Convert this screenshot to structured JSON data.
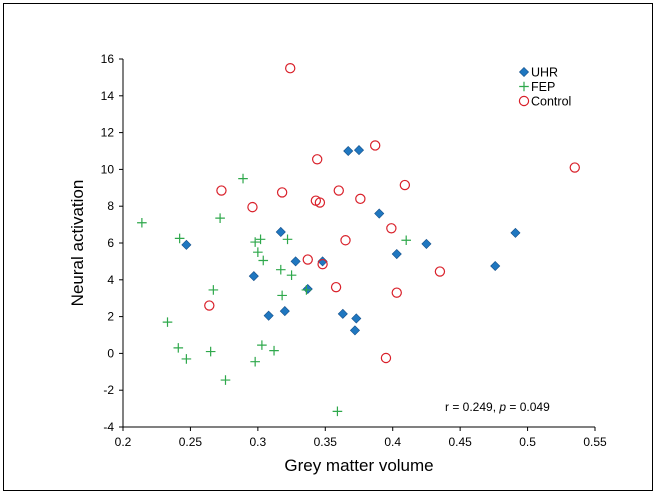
{
  "chart_data": {
    "type": "scatter",
    "xlabel": "Grey matter volume",
    "ylabel": "Neural activation",
    "xlim": [
      0.2,
      0.55
    ],
    "ylim": [
      -4,
      16
    ],
    "xticks": [
      "0.2",
      "0.25",
      "0.3",
      "0.35",
      "0.4",
      "0.45",
      "0.5",
      "0.55"
    ],
    "yticks": [
      "-4",
      "-2",
      "0",
      "2",
      "4",
      "6",
      "8",
      "10",
      "12",
      "14",
      "16"
    ],
    "xtick_values": [
      0.2,
      0.25,
      0.3,
      0.35,
      0.4,
      0.45,
      0.5,
      0.55
    ],
    "ytick_values": [
      -4,
      -2,
      0,
      2,
      4,
      6,
      8,
      10,
      12,
      14,
      16
    ],
    "grid": false,
    "legend_position": "top-right",
    "annotation": {
      "r_text": "r = 0.249, ",
      "p_symbol": "p",
      "p_text": " = 0.049"
    },
    "series": [
      {
        "name": "UHR",
        "marker": "diamond",
        "color": "#1f77c0",
        "points": [
          [
            0.247,
            5.9
          ],
          [
            0.297,
            4.2
          ],
          [
            0.308,
            2.05
          ],
          [
            0.317,
            6.6
          ],
          [
            0.32,
            2.3
          ],
          [
            0.328,
            5.0
          ],
          [
            0.337,
            3.5
          ],
          [
            0.348,
            5.0
          ],
          [
            0.363,
            2.15
          ],
          [
            0.367,
            11.0
          ],
          [
            0.372,
            1.25
          ],
          [
            0.373,
            1.9
          ],
          [
            0.375,
            11.05
          ],
          [
            0.39,
            7.6
          ],
          [
            0.403,
            5.4
          ],
          [
            0.425,
            5.95
          ],
          [
            0.476,
            4.75
          ],
          [
            0.491,
            6.55
          ]
        ]
      },
      {
        "name": "FEP",
        "marker": "plus",
        "color": "#2ea84b",
        "points": [
          [
            0.214,
            7.1
          ],
          [
            0.233,
            1.7
          ],
          [
            0.241,
            0.3
          ],
          [
            0.242,
            6.25
          ],
          [
            0.247,
            -0.3
          ],
          [
            0.265,
            0.1
          ],
          [
            0.267,
            3.45
          ],
          [
            0.272,
            7.35
          ],
          [
            0.276,
            -1.45
          ],
          [
            0.289,
            9.5
          ],
          [
            0.298,
            -0.45
          ],
          [
            0.298,
            6.05
          ],
          [
            0.3,
            5.5
          ],
          [
            0.302,
            6.2
          ],
          [
            0.303,
            0.45
          ],
          [
            0.304,
            5.05
          ],
          [
            0.312,
            0.15
          ],
          [
            0.317,
            4.55
          ],
          [
            0.318,
            3.15
          ],
          [
            0.322,
            6.2
          ],
          [
            0.325,
            4.25
          ],
          [
            0.336,
            3.45
          ],
          [
            0.359,
            -3.15
          ],
          [
            0.41,
            6.15
          ]
        ]
      },
      {
        "name": "Control",
        "marker": "circle",
        "color": "#d9202a",
        "points": [
          [
            0.264,
            2.6
          ],
          [
            0.273,
            8.85
          ],
          [
            0.296,
            7.95
          ],
          [
            0.318,
            8.75
          ],
          [
            0.324,
            15.5
          ],
          [
            0.337,
            5.1
          ],
          [
            0.343,
            8.3
          ],
          [
            0.344,
            10.55
          ],
          [
            0.346,
            8.2
          ],
          [
            0.348,
            4.85
          ],
          [
            0.358,
            3.6
          ],
          [
            0.36,
            8.85
          ],
          [
            0.365,
            6.15
          ],
          [
            0.376,
            8.4
          ],
          [
            0.387,
            11.3
          ],
          [
            0.395,
            -0.25
          ],
          [
            0.399,
            6.8
          ],
          [
            0.403,
            3.3
          ],
          [
            0.409,
            9.15
          ],
          [
            0.435,
            4.45
          ],
          [
            0.535,
            10.1
          ]
        ]
      }
    ]
  }
}
